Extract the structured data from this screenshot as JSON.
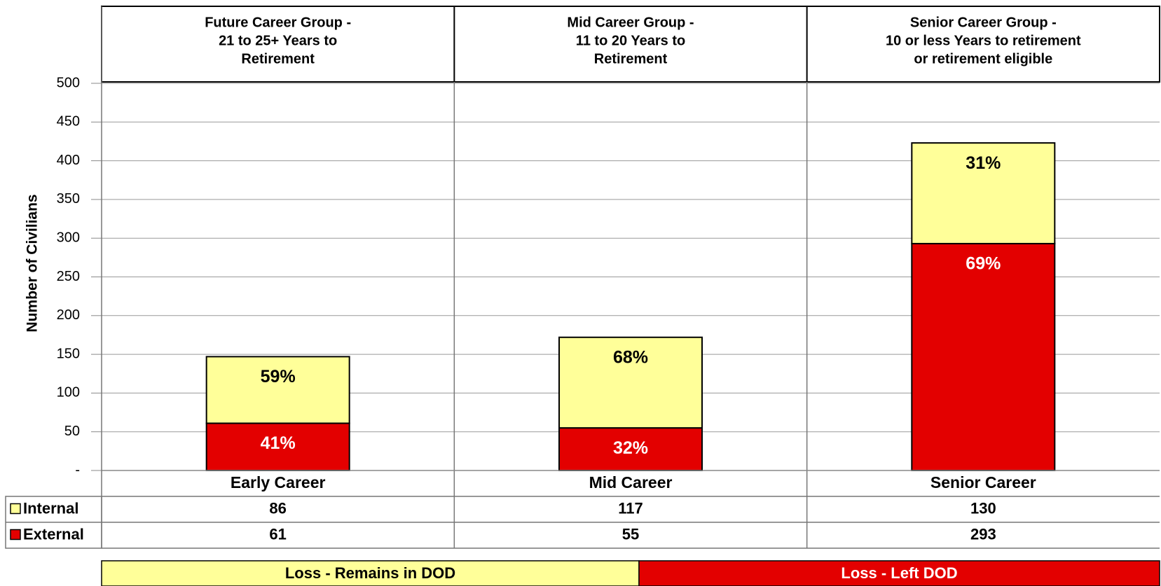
{
  "chart_data": {
    "type": "stacked_bar",
    "y_label": "Number of Civilians",
    "group_headers": [
      [
        "Future Career Group -",
        "21 to 25+ Years to",
        "Retirement"
      ],
      [
        "Mid Career Group -",
        "11 to 20 Years to",
        "Retirement"
      ],
      [
        "Senior Career Group -",
        "10 or less Years to retirement",
        "or retirement eligible"
      ]
    ],
    "categories": [
      "Early Career",
      "Mid Career",
      "Senior Career"
    ],
    "series": [
      {
        "name": "Internal",
        "color": "#ffff99",
        "values": [
          86,
          117,
          130
        ],
        "percent": [
          59,
          68,
          31
        ],
        "percent_labels": [
          "59%",
          "68%",
          "31%"
        ]
      },
      {
        "name": "External",
        "color": "#e30000",
        "values": [
          61,
          55,
          293
        ],
        "percent": [
          41,
          32,
          69
        ],
        "percent_labels": [
          "41%",
          "32%",
          "69%"
        ]
      }
    ],
    "ylim": [
      0,
      500
    ],
    "yticks": [
      {
        "value": 0,
        "label": "-"
      },
      50,
      100,
      150,
      200,
      250,
      300,
      350,
      400,
      450,
      500
    ],
    "grid": true,
    "footer_labels": [
      "Loss - Remains in DOD",
      "Loss - Left DOD"
    ]
  }
}
